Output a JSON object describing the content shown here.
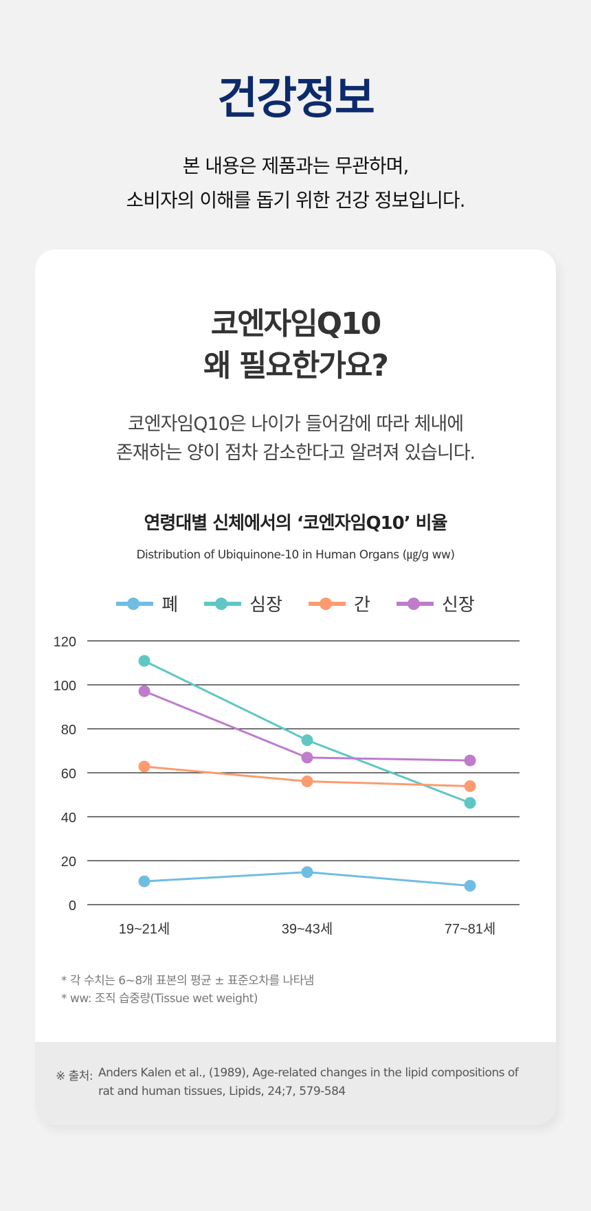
{
  "header": {
    "title": "건강정보",
    "intro_lines": [
      "본 내용은 제품과는 무관하며,",
      "소비자의 이해를 돕기 위한 건강 정보입니다."
    ]
  },
  "card": {
    "heading_lines": [
      "코엔자임Q10",
      "왜 필요한가요?"
    ],
    "body_lines": [
      "코엔자임Q10은 나이가 들어감에 따라 체내에",
      "존재하는 양이 점차 감소한다고 알려져 있습니다."
    ],
    "notes": [
      "* 각 수치는 6~8개 표본의 평균 ± 표준오차를 나타냄",
      "* ww: 조직 습중량(Tissue wet weight)"
    ],
    "citation": {
      "label": "※ 출처:",
      "lines": [
        "Anders Kalen et al., (1989), Age-related changes in the lipid compositions of",
        "rat and human tissues, Lipids, 24;7, 579-584"
      ]
    }
  },
  "chart_data": {
    "type": "line",
    "title": "연령대별 신체에서의 ‘코엔자임Q10’ 비율",
    "subtitle": "Distribution of Ubiquinone-10 in Human Organs (㎍/g ww)",
    "categories": [
      "19~21세",
      "39~43세",
      "77~81세"
    ],
    "ylim": [
      0,
      120
    ],
    "yticks": [
      "0",
      "20",
      "40",
      "60",
      "80",
      "100",
      "120"
    ],
    "grid": true,
    "legend_position": "top",
    "series": [
      {
        "name": "폐",
        "color": "#6fbde3",
        "values": [
          10.6,
          14.8,
          8.6
        ]
      },
      {
        "name": "심장",
        "color": "#5ec7c3",
        "values": [
          110.9,
          74.8,
          46.3
        ]
      },
      {
        "name": "간",
        "color": "#fc9b6e",
        "values": [
          62.8,
          56.1,
          53.9
        ]
      },
      {
        "name": "신장",
        "color": "#bf7ccb",
        "values": [
          97.1,
          66.9,
          65.6
        ]
      }
    ]
  }
}
